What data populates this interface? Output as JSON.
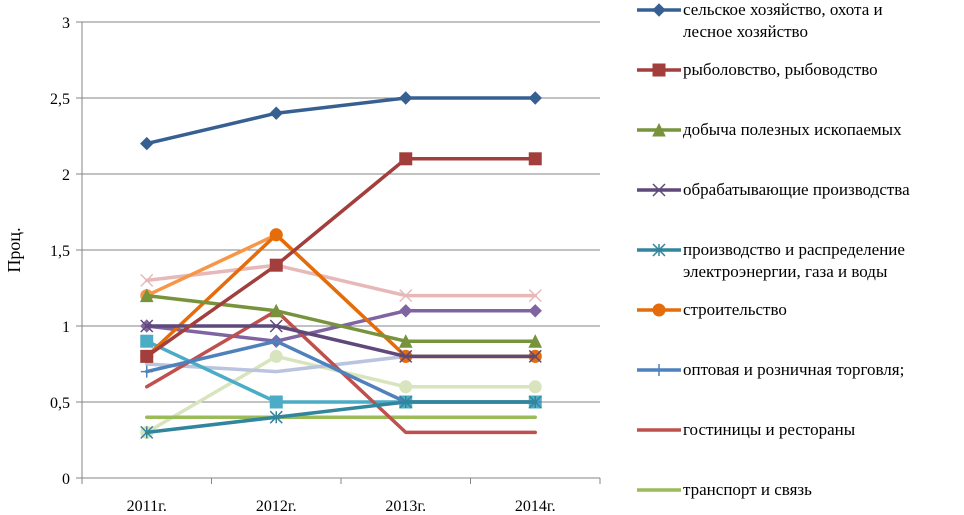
{
  "chart_data": {
    "type": "line",
    "title": "",
    "xlabel": "",
    "ylabel": "Проц.",
    "ylim": [
      0,
      3
    ],
    "y_ticks": [
      "0",
      "0,5",
      "1",
      "1,5",
      "2",
      "2,5",
      "3"
    ],
    "grid": "horizontal",
    "legend_position": "right",
    "categories": [
      "2011г.",
      "2012г.",
      "2013г.",
      "2014г."
    ],
    "series": [
      {
        "name": "сельское хозяйство, охота и лесное хозяйство",
        "name_lines": [
          "сельское хозяйство, охота и",
          "лесное хозяйство"
        ],
        "color": "#376092",
        "marker": "diamond",
        "values": [
          2.2,
          2.4,
          2.5,
          2.5
        ]
      },
      {
        "name": "рыболовство, рыбоводство",
        "name_lines": [
          "рыболовство, рыбоводство"
        ],
        "color": "#A23E3B",
        "marker": "square",
        "values": [
          0.8,
          1.4,
          2.1,
          2.1
        ]
      },
      {
        "name": "добыча полезных ископаемых",
        "name_lines": [
          "добыча полезных ископаемых"
        ],
        "color": "#77933C",
        "marker": "triangle",
        "values": [
          1.2,
          1.1,
          0.9,
          0.9
        ]
      },
      {
        "name": "обрабатывающие производства",
        "name_lines": [
          "обрабатывающие производства"
        ],
        "color": "#5F497A",
        "marker": "x",
        "values": [
          1.0,
          1.0,
          0.8,
          0.8
        ]
      },
      {
        "name": "производство и распределение электроэнергии, газа и воды",
        "name_lines": [
          "производство и распределение",
          "электроэнергии, газа и воды"
        ],
        "color": "#31859C",
        "marker": "star",
        "values": [
          0.3,
          0.4,
          0.5,
          0.5
        ]
      },
      {
        "name": "строительство",
        "name_lines": [
          "строительство"
        ],
        "color": "#E46C0A",
        "marker": "circle",
        "values": [
          0.8,
          1.6,
          0.8,
          0.8
        ]
      },
      {
        "name": "оптовая и розничная торговля;",
        "name_lines": [
          "оптовая и розничная торговля;"
        ],
        "color": "#4F81BD",
        "marker": "plus",
        "values": [
          0.7,
          0.9,
          0.5,
          0.5
        ]
      },
      {
        "name": "гостиницы и рестораны",
        "name_lines": [
          "гостиницы и рестораны"
        ],
        "color": "#C0504D",
        "marker": "none",
        "values": [
          0.6,
          1.1,
          0.3,
          0.3
        ]
      },
      {
        "name": "транспорт и связь",
        "name_lines": [
          "транспорт и связь"
        ],
        "color": "#9BBB59",
        "marker": "none",
        "values": [
          0.4,
          0.4,
          0.4,
          0.4
        ]
      },
      {
        "name": "",
        "name_lines": [],
        "color": "#8064A2",
        "marker": "diamond",
        "values": [
          1.0,
          0.9,
          1.1,
          1.1
        ]
      },
      {
        "name": "",
        "name_lines": [],
        "color": "#4BACC6",
        "marker": "square",
        "values": [
          0.9,
          0.5,
          0.5,
          0.5
        ]
      },
      {
        "name": "",
        "name_lines": [],
        "color": "#F79646",
        "marker": "circle",
        "values": [
          1.2,
          1.6,
          0.8,
          0.8
        ]
      },
      {
        "name": "",
        "name_lines": [],
        "color": "#B9C4DE",
        "marker": "none",
        "values": [
          0.75,
          0.7,
          0.8,
          0.8
        ]
      },
      {
        "name": "",
        "name_lines": [],
        "color": "#E6B9B8",
        "marker": "x",
        "values": [
          1.3,
          1.4,
          1.2,
          1.2
        ]
      },
      {
        "name": "",
        "name_lines": [],
        "color": "#D7E4BD",
        "marker": "circle",
        "values": [
          0.3,
          0.8,
          0.6,
          0.6
        ]
      }
    ]
  }
}
